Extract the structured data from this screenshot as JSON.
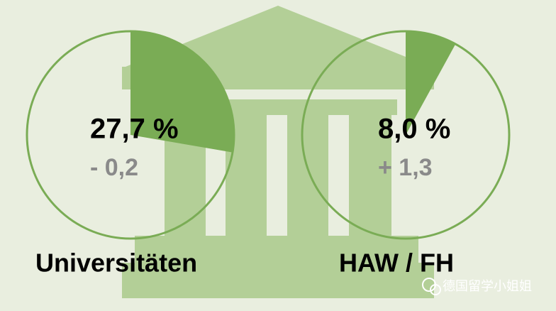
{
  "chart_data": [
    {
      "type": "pie",
      "name": "Universitäten",
      "values": [
        27.7
      ],
      "value_labels": [
        "27,7 %"
      ],
      "change": -0.2,
      "change_label": "- 0,2",
      "color": "#7aac55"
    },
    {
      "type": "pie",
      "name": "HAW / FH",
      "values": [
        8.0
      ],
      "value_labels": [
        "8,0 %"
      ],
      "change": 1.3,
      "change_label": "+ 1,3",
      "color": "#7aac55"
    }
  ],
  "watermark": "德国留学小姐姐"
}
